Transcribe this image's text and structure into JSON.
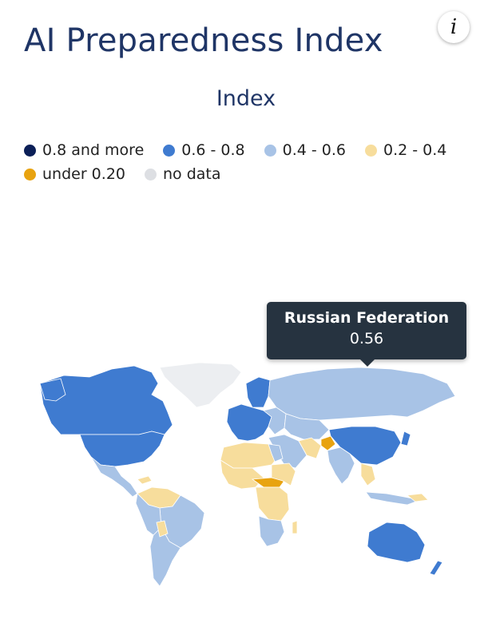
{
  "header": {
    "title": "AI Preparedness Index",
    "info_icon": "i"
  },
  "subtitle": "Index",
  "legend": [
    {
      "label": "0.8 and more",
      "color": "#0b1f57"
    },
    {
      "label": "0.6 - 0.8",
      "color": "#3f7bd0"
    },
    {
      "label": "0.4 - 0.6",
      "color": "#a8c3e6"
    },
    {
      "label": "0.2 - 0.4",
      "color": "#f7dd9c"
    },
    {
      "label": "under 0.20",
      "color": "#e8a310"
    },
    {
      "label": "no data",
      "color": "#dddfe3"
    }
  ],
  "tooltip": {
    "country": "Russian Federation",
    "value": "0.56"
  }
}
